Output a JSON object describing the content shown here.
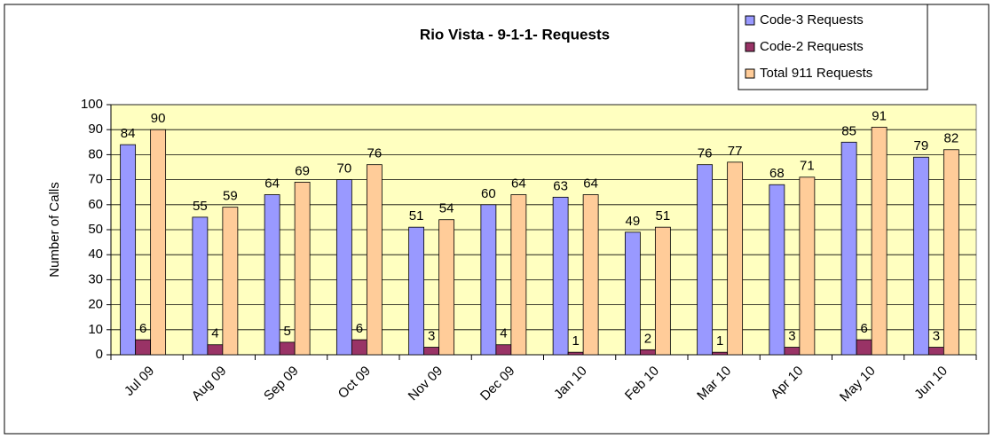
{
  "chart_data": {
    "type": "bar",
    "title": "Rio Vista - 9-1-1- Requests",
    "y_label": "Number of Calls",
    "categories": [
      "Jul 09",
      "Aug 09",
      "Sep 09",
      "Oct 09",
      "Nov 09",
      "Dec 09",
      "Jan 10",
      "Feb 10",
      "Mar 10",
      "Apr 10",
      "May 10",
      "Jun 10"
    ],
    "series": [
      {
        "name": "Code-3 Requests",
        "color": "#9999ff",
        "values": [
          84,
          55,
          64,
          70,
          51,
          60,
          63,
          49,
          76,
          68,
          85,
          79
        ]
      },
      {
        "name": "Code-2 Requests",
        "color": "#993366",
        "values": [
          6,
          4,
          5,
          6,
          3,
          4,
          1,
          2,
          1,
          3,
          6,
          3
        ]
      },
      {
        "name": "Total 911 Requests",
        "color": "#ffcc99",
        "values": [
          90,
          59,
          69,
          76,
          54,
          64,
          64,
          51,
          77,
          71,
          91,
          82
        ]
      }
    ],
    "ylim": [
      0,
      100
    ],
    "yticks": [
      0,
      10,
      20,
      30,
      40,
      50,
      60,
      70,
      80,
      90,
      100
    ],
    "grid": true,
    "legend": "top-right",
    "plot_background": "#ffffc0"
  }
}
